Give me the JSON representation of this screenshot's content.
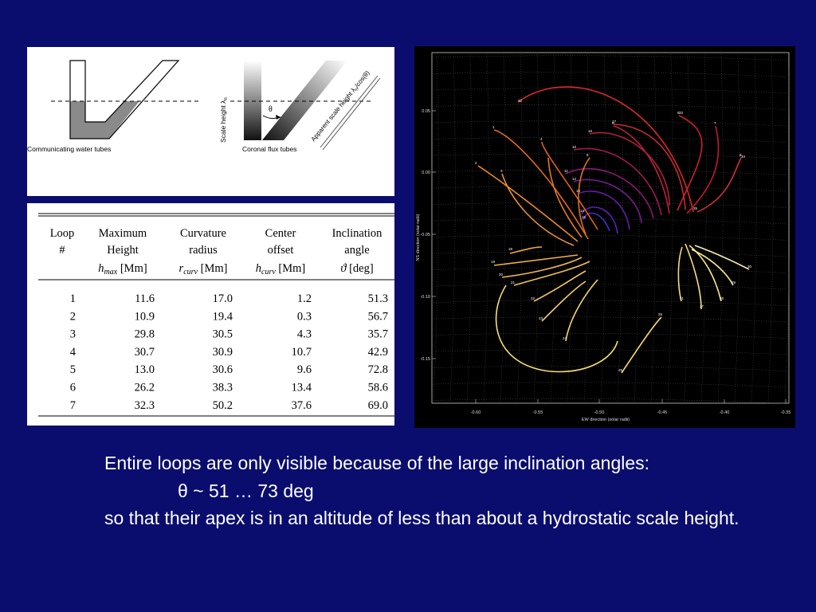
{
  "diagram": {
    "water_label": "Communicating water tubes",
    "flux_label": "Coronal flux tubes",
    "scale_height_label": "Scale height λ",
    "scale_height_sub": "n",
    "theta_label": "θ",
    "apparent_label": "Apparent scale height λ",
    "apparent_sub": "n",
    "apparent_suffix": "/cos(θ)"
  },
  "table": {
    "headers": [
      [
        "Loop",
        "#",
        ""
      ],
      [
        "Maximum",
        "Height",
        "h_max [Mm]"
      ],
      [
        "Curvature",
        "radius",
        "r_curv [Mm]"
      ],
      [
        "Center",
        "offset",
        "h_curv [Mm]"
      ],
      [
        "Inclination",
        "angle",
        "ϑ [deg]"
      ]
    ],
    "header_math": [
      {
        "var": "h",
        "sub": "max",
        "unit": " [Mm]"
      },
      {
        "var": "r",
        "sub": "curv",
        "unit": " [Mm]"
      },
      {
        "var": "h",
        "sub": "curv",
        "unit": " [Mm]"
      },
      {
        "var": "ϑ",
        "sub": "",
        "unit": " [deg]"
      }
    ],
    "rows": [
      [
        "1",
        "11.6",
        "17.0",
        "1.2",
        "51.3"
      ],
      [
        "2",
        "10.9",
        "19.4",
        "0.3",
        "56.7"
      ],
      [
        "3",
        "29.8",
        "30.5",
        "4.3",
        "35.7"
      ],
      [
        "4",
        "30.7",
        "30.9",
        "10.7",
        "42.9"
      ],
      [
        "5",
        "13.0",
        "30.6",
        "9.6",
        "72.8"
      ],
      [
        "6",
        "26.2",
        "38.3",
        "13.4",
        "58.6"
      ],
      [
        "7",
        "32.3",
        "50.2",
        "37.6",
        "69.0"
      ]
    ]
  },
  "plot": {
    "xlabel": "EW direction (solar radii)",
    "ylabel": "NS direction (solar radii)",
    "xticks": [
      "-0.60",
      "-0.55",
      "-0.50",
      "-0.45",
      "-0.40",
      "-0.35"
    ],
    "yticks": [
      "0.05",
      "0.00",
      "-0.05",
      "-0.10",
      "-0.15"
    ],
    "loop_labels": [
      "1",
      "2",
      "3",
      "4",
      "5",
      "6",
      "7",
      "8",
      "9",
      "10",
      "11",
      "12",
      "13",
      "14",
      "15",
      "16",
      "17",
      "18",
      "19",
      "20",
      "21",
      "22",
      "23",
      "24",
      "25",
      "26",
      "27",
      "28",
      "29",
      "30",
      "31",
      "32",
      "33",
      "34",
      "35"
    ]
  },
  "caption": {
    "line1": "Entire loops are only visible because of the large inclination angles:",
    "line2": "θ ~ 51 … 73 deg",
    "line3": "so that their apex is in an altitude of less than about a hydrostatic scale height."
  }
}
